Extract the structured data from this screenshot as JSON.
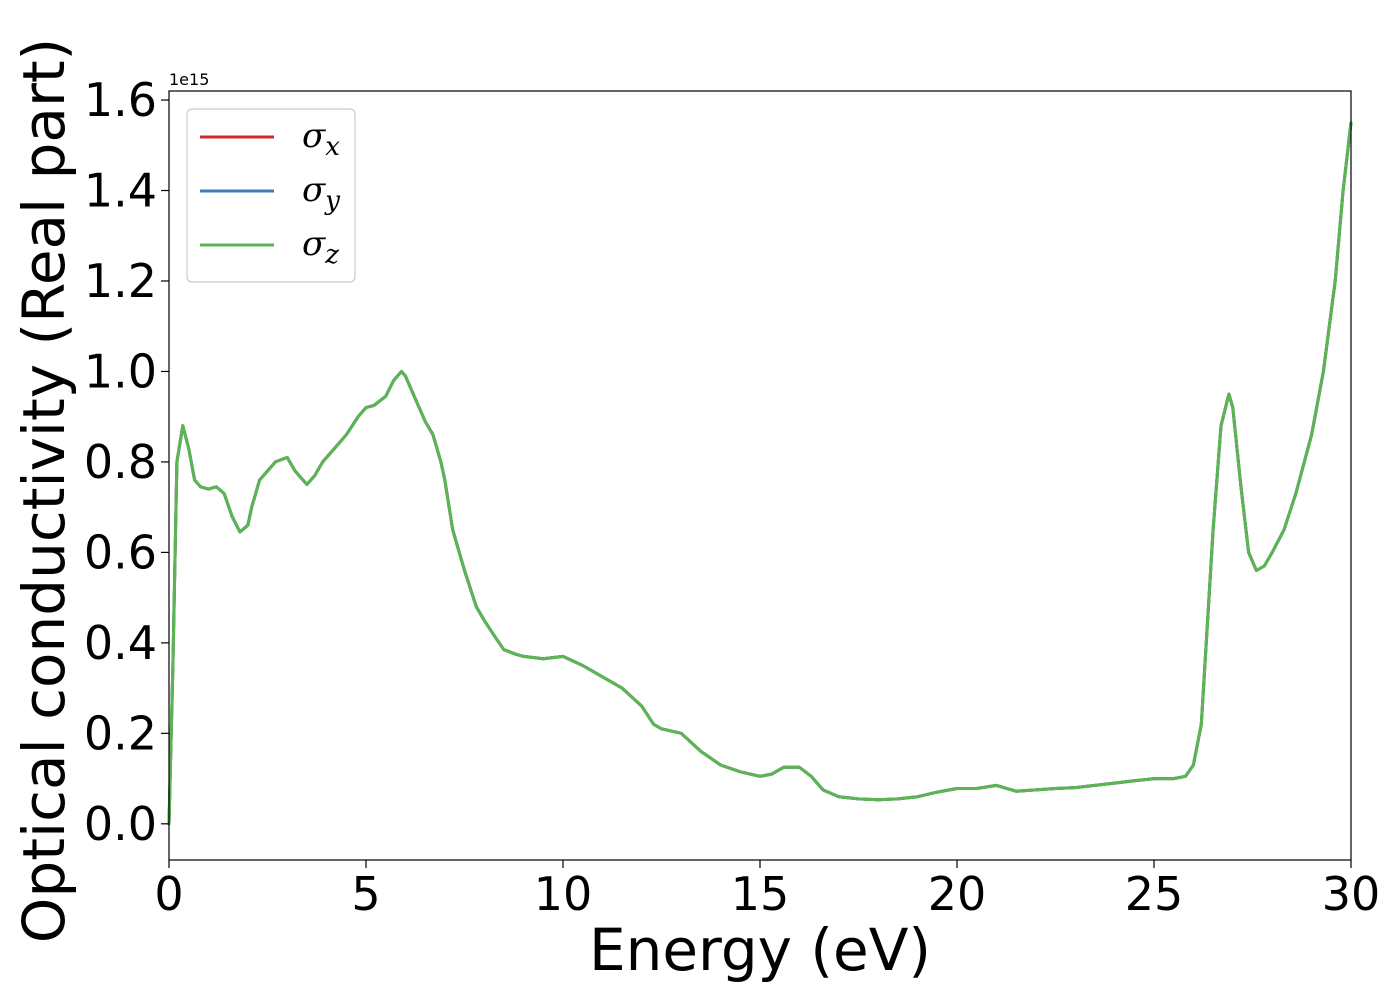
{
  "chart_data": {
    "type": "line",
    "xlabel": "Energy (eV)",
    "ylabel": "Optical conductivity (Real part)",
    "y_offset_label": "1e15",
    "xlim": [
      0,
      30
    ],
    "ylim": [
      -0.08,
      1.62
    ],
    "x_ticks": [
      0,
      5,
      10,
      15,
      20,
      25,
      30
    ],
    "x_tick_labels": [
      "0",
      "5",
      "10",
      "15",
      "20",
      "25",
      "30"
    ],
    "y_ticks": [
      0.0,
      0.2,
      0.4,
      0.6,
      0.8,
      1.0,
      1.2,
      1.4,
      1.6
    ],
    "y_tick_labels": [
      "0.0",
      "0.2",
      "0.4",
      "0.6",
      "0.8",
      "1.0",
      "1.2",
      "1.4",
      "1.6"
    ],
    "grid": false,
    "legend_position": "top-left",
    "x": [
      0,
      0.1,
      0.2,
      0.35,
      0.5,
      0.65,
      0.8,
      1.0,
      1.2,
      1.4,
      1.6,
      1.8,
      2.0,
      2.1,
      2.3,
      2.5,
      2.7,
      3.0,
      3.2,
      3.5,
      3.7,
      3.9,
      4.0,
      4.2,
      4.5,
      4.8,
      5.0,
      5.2,
      5.5,
      5.7,
      5.9,
      6.0,
      6.2,
      6.5,
      6.7,
      6.9,
      7.0,
      7.2,
      7.5,
      7.8,
      8.0,
      8.3,
      8.5,
      8.8,
      9.0,
      9.5,
      10.0,
      10.5,
      11.0,
      11.5,
      12.0,
      12.3,
      12.5,
      13.0,
      13.5,
      14.0,
      14.5,
      15.0,
      15.3,
      15.6,
      16.0,
      16.3,
      16.6,
      17.0,
      17.5,
      18.0,
      18.5,
      19.0,
      19.5,
      20.0,
      20.5,
      21.0,
      21.5,
      22.0,
      22.5,
      23.0,
      23.5,
      24.0,
      24.5,
      25.0,
      25.5,
      25.8,
      26.0,
      26.2,
      26.5,
      26.7,
      26.9,
      27.0,
      27.2,
      27.4,
      27.6,
      27.8,
      28.0,
      28.3,
      28.6,
      29.0,
      29.3,
      29.6,
      29.8,
      30.0
    ],
    "series": [
      {
        "name": "σx",
        "color": "#d62728",
        "values": [
          0.0,
          0.35,
          0.8,
          0.88,
          0.83,
          0.76,
          0.745,
          0.74,
          0.745,
          0.73,
          0.68,
          0.645,
          0.66,
          0.7,
          0.76,
          0.78,
          0.8,
          0.81,
          0.78,
          0.75,
          0.77,
          0.8,
          0.81,
          0.83,
          0.86,
          0.9,
          0.92,
          0.925,
          0.945,
          0.98,
          1.0,
          0.99,
          0.95,
          0.89,
          0.86,
          0.8,
          0.76,
          0.65,
          0.56,
          0.48,
          0.45,
          0.41,
          0.385,
          0.375,
          0.37,
          0.365,
          0.37,
          0.35,
          0.325,
          0.3,
          0.26,
          0.22,
          0.21,
          0.2,
          0.16,
          0.13,
          0.115,
          0.105,
          0.11,
          0.125,
          0.125,
          0.105,
          0.075,
          0.06,
          0.055,
          0.053,
          0.055,
          0.06,
          0.07,
          0.078,
          0.078,
          0.085,
          0.072,
          0.075,
          0.078,
          0.08,
          0.085,
          0.09,
          0.095,
          0.1,
          0.1,
          0.105,
          0.13,
          0.22,
          0.65,
          0.88,
          0.95,
          0.92,
          0.75,
          0.6,
          0.56,
          0.57,
          0.6,
          0.65,
          0.73,
          0.86,
          1.0,
          1.2,
          1.4,
          1.55
        ]
      },
      {
        "name": "σy",
        "color": "#3a7bb8",
        "values": [
          0.0,
          0.35,
          0.8,
          0.88,
          0.83,
          0.76,
          0.745,
          0.74,
          0.745,
          0.73,
          0.68,
          0.645,
          0.66,
          0.7,
          0.76,
          0.78,
          0.8,
          0.81,
          0.78,
          0.75,
          0.77,
          0.8,
          0.81,
          0.83,
          0.86,
          0.9,
          0.92,
          0.925,
          0.945,
          0.98,
          1.0,
          0.99,
          0.95,
          0.89,
          0.86,
          0.8,
          0.76,
          0.65,
          0.56,
          0.48,
          0.45,
          0.41,
          0.385,
          0.375,
          0.37,
          0.365,
          0.37,
          0.35,
          0.325,
          0.3,
          0.26,
          0.22,
          0.21,
          0.2,
          0.16,
          0.13,
          0.115,
          0.105,
          0.11,
          0.125,
          0.125,
          0.105,
          0.075,
          0.06,
          0.055,
          0.053,
          0.055,
          0.06,
          0.07,
          0.078,
          0.078,
          0.085,
          0.072,
          0.075,
          0.078,
          0.08,
          0.085,
          0.09,
          0.095,
          0.1,
          0.1,
          0.105,
          0.13,
          0.22,
          0.65,
          0.88,
          0.95,
          0.92,
          0.75,
          0.6,
          0.56,
          0.57,
          0.6,
          0.65,
          0.73,
          0.86,
          1.0,
          1.2,
          1.4,
          1.55
        ]
      },
      {
        "name": "σz",
        "color": "#5ab552",
        "values": [
          0.0,
          0.35,
          0.8,
          0.88,
          0.83,
          0.76,
          0.745,
          0.74,
          0.745,
          0.73,
          0.68,
          0.645,
          0.66,
          0.7,
          0.76,
          0.78,
          0.8,
          0.81,
          0.78,
          0.75,
          0.77,
          0.8,
          0.81,
          0.83,
          0.86,
          0.9,
          0.92,
          0.925,
          0.945,
          0.98,
          1.0,
          0.99,
          0.95,
          0.89,
          0.86,
          0.8,
          0.76,
          0.65,
          0.56,
          0.48,
          0.45,
          0.41,
          0.385,
          0.375,
          0.37,
          0.365,
          0.37,
          0.35,
          0.325,
          0.3,
          0.26,
          0.22,
          0.21,
          0.2,
          0.16,
          0.13,
          0.115,
          0.105,
          0.11,
          0.125,
          0.125,
          0.105,
          0.075,
          0.06,
          0.055,
          0.053,
          0.055,
          0.06,
          0.07,
          0.078,
          0.078,
          0.085,
          0.072,
          0.075,
          0.078,
          0.08,
          0.085,
          0.09,
          0.095,
          0.1,
          0.1,
          0.105,
          0.13,
          0.22,
          0.65,
          0.88,
          0.95,
          0.92,
          0.75,
          0.6,
          0.56,
          0.57,
          0.6,
          0.65,
          0.73,
          0.86,
          1.0,
          1.2,
          1.4,
          1.55
        ]
      }
    ],
    "legend": [
      {
        "base": "σ",
        "sub": "x",
        "color": "#d62728"
      },
      {
        "base": "σ",
        "sub": "y",
        "color": "#3a7bb8"
      },
      {
        "base": "σ",
        "sub": "z",
        "color": "#5ab552"
      }
    ]
  }
}
